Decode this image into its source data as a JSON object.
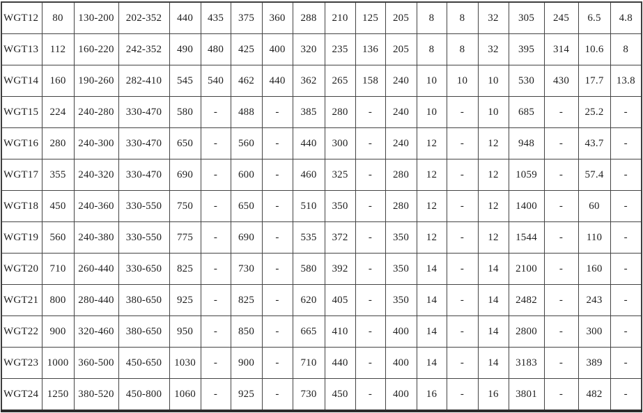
{
  "colors": {
    "background": "#ffffff",
    "grid_line": "#434343",
    "outer_border": "#3d3d3d",
    "text": "#1e1e1e"
  },
  "table": {
    "row_count": 13,
    "column_count": 19,
    "rows": [
      {
        "label": "WGT12",
        "values": [
          "80",
          "130-200",
          "202-352",
          "440",
          "435",
          "375",
          "360",
          "288",
          "210",
          "125",
          "205",
          "8",
          "8",
          "32",
          "305",
          "245",
          "6.5",
          "4.8"
        ]
      },
      {
        "label": "WGT13",
        "values": [
          "112",
          "160-220",
          "242-352",
          "490",
          "480",
          "425",
          "400",
          "320",
          "235",
          "136",
          "205",
          "8",
          "8",
          "32",
          "395",
          "314",
          "10.6",
          "8"
        ]
      },
      {
        "label": "WGT14",
        "values": [
          "160",
          "190-260",
          "282-410",
          "545",
          "540",
          "462",
          "440",
          "362",
          "265",
          "158",
          "240",
          "10",
          "10",
          "10",
          "530",
          "430",
          "17.7",
          "13.8"
        ]
      },
      {
        "label": "WGT15",
        "values": [
          "224",
          "240-280",
          "330-470",
          "580",
          "-",
          "488",
          "-",
          "385",
          "280",
          "-",
          "240",
          "10",
          "-",
          "10",
          "685",
          "-",
          "25.2",
          "-"
        ]
      },
      {
        "label": "WGT16",
        "values": [
          "280",
          "240-300",
          "330-470",
          "650",
          "-",
          "560",
          "-",
          "440",
          "300",
          "-",
          "240",
          "12",
          "-",
          "12",
          "948",
          "-",
          "43.7",
          "-"
        ]
      },
      {
        "label": "WGT17",
        "values": [
          "355",
          "240-320",
          "330-470",
          "690",
          "-",
          "600",
          "-",
          "460",
          "325",
          "-",
          "280",
          "12",
          "-",
          "12",
          "1059",
          "-",
          "57.4",
          "-"
        ]
      },
      {
        "label": "WGT18",
        "values": [
          "450",
          "240-360",
          "330-550",
          "750",
          "-",
          "650",
          "-",
          "510",
          "350",
          "-",
          "280",
          "12",
          "-",
          "12",
          "1400",
          "-",
          "60",
          "-"
        ]
      },
      {
        "label": "WGT19",
        "values": [
          "560",
          "240-380",
          "330-550",
          "775",
          "-",
          "690",
          "-",
          "535",
          "372",
          "-",
          "350",
          "12",
          "-",
          "12",
          "1544",
          "-",
          "110",
          "-"
        ]
      },
      {
        "label": "WGT20",
        "values": [
          "710",
          "260-440",
          "330-650",
          "825",
          "-",
          "730",
          "-",
          "580",
          "392",
          "-",
          "350",
          "14",
          "-",
          "14",
          "2100",
          "-",
          "160",
          "-"
        ]
      },
      {
        "label": "WGT21",
        "values": [
          "800",
          "280-440",
          "380-650",
          "925",
          "-",
          "825",
          "-",
          "620",
          "405",
          "-",
          "350",
          "14",
          "-",
          "14",
          "2482",
          "-",
          "243",
          "-"
        ]
      },
      {
        "label": "WGT22",
        "values": [
          "900",
          "320-460",
          "380-650",
          "950",
          "-",
          "850",
          "-",
          "665",
          "410",
          "-",
          "400",
          "14",
          "-",
          "14",
          "2800",
          "-",
          "300",
          "-"
        ]
      },
      {
        "label": "WGT23",
        "values": [
          "1000",
          "360-500",
          "450-650",
          "1030",
          "-",
          "900",
          "-",
          "710",
          "440",
          "-",
          "400",
          "14",
          "-",
          "14",
          "3183",
          "-",
          "389",
          "-"
        ]
      },
      {
        "label": "WGT24",
        "values": [
          "1250",
          "380-520",
          "450-800",
          "1060",
          "-",
          "925",
          "-",
          "730",
          "450",
          "-",
          "400",
          "16",
          "-",
          "16",
          "3801",
          "-",
          "482",
          "-"
        ]
      }
    ]
  }
}
